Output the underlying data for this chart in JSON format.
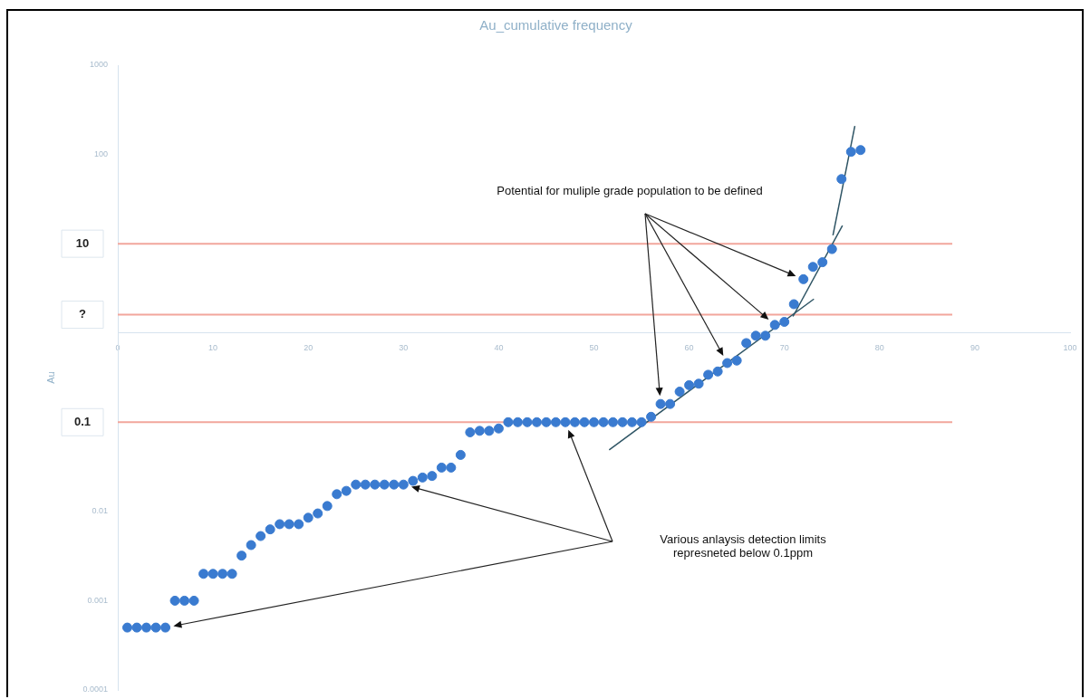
{
  "chart_data": {
    "type": "scatter",
    "title": "Au_cumulative frequency",
    "ylabel": "Au",
    "log": "y",
    "grid": false,
    "legend": false,
    "marker": "circle",
    "xlim": [
      0,
      100
    ],
    "xticks": [
      0,
      10,
      20,
      30,
      40,
      50,
      60,
      70,
      80,
      90,
      100
    ],
    "ylim": [
      0.0001,
      1000
    ],
    "yticks": [
      0.0001,
      0.001,
      0.01,
      100,
      1000
    ],
    "series": [
      {
        "color": "#3a7bd0",
        "x": [
          1,
          2,
          3,
          4,
          5,
          6,
          7,
          8,
          9,
          10,
          11,
          12,
          13,
          14,
          15,
          16,
          17,
          18,
          19,
          20,
          21,
          22,
          23,
          24,
          25,
          26,
          27,
          28,
          29,
          30,
          31,
          32,
          33,
          34,
          35,
          36,
          37,
          38,
          39,
          40,
          41,
          42,
          43,
          44,
          45,
          46,
          47,
          48,
          49,
          50,
          51,
          52,
          53,
          54,
          55,
          56,
          57,
          58,
          59,
          60,
          61,
          62,
          63,
          64,
          65,
          66,
          67,
          68,
          69,
          70,
          71,
          72,
          73,
          74,
          75,
          76,
          77,
          78
        ],
        "values": [
          0.0005,
          0.0005,
          0.0005,
          0.0005,
          0.0005,
          0.001,
          0.001,
          0.001,
          0.002,
          0.002,
          0.002,
          0.002,
          0.0032,
          0.0042,
          0.0053,
          0.0063,
          0.0072,
          0.0072,
          0.0072,
          0.0085,
          0.0095,
          0.0115,
          0.0156,
          0.017,
          0.02,
          0.02,
          0.02,
          0.02,
          0.02,
          0.02,
          0.022,
          0.024,
          0.025,
          0.031,
          0.031,
          0.043,
          0.077,
          0.08,
          0.08,
          0.085,
          0.1,
          0.1,
          0.1,
          0.1,
          0.1,
          0.1,
          0.1,
          0.1,
          0.1,
          0.1,
          0.1,
          0.1,
          0.1,
          0.1,
          0.1,
          0.115,
          0.16,
          0.16,
          0.22,
          0.26,
          0.27,
          0.34,
          0.37,
          0.46,
          0.49,
          0.77,
          0.93,
          0.93,
          1.23,
          1.33,
          2.1,
          4.0,
          5.5,
          6.2,
          8.7,
          53,
          107,
          112
        ]
      },
      {
        "type": "line",
        "color": "#2f5565",
        "line_style": "solid",
        "marker": "none",
        "x": [
          51.6,
          73.1
        ],
        "values": [
          0.049,
          2.4
        ]
      },
      {
        "type": "line",
        "color": "#2f5565",
        "line_style": "solid",
        "marker": "none",
        "x": [
          70.9,
          76.1
        ],
        "values": [
          1.53,
          16
        ]
      },
      {
        "type": "line",
        "color": "#2f5565",
        "line_style": "solid",
        "marker": "none",
        "x": [
          75.1,
          77.4
        ],
        "values": [
          12.4,
          208
        ]
      }
    ],
    "ref_lines": [
      {
        "axis": "y",
        "value": 10,
        "label": "10",
        "color": "#f2a69c"
      },
      {
        "axis": "y",
        "value": 1.6,
        "label": "?",
        "color": "#f2a69c"
      },
      {
        "axis": "y",
        "value": 0.1,
        "label": "0.1",
        "color": "#f2a69c"
      }
    ],
    "annotations": [
      "Potential for muliple grade population to be defined",
      "Various anlaysis detection limits\nrepresneted below 0.1ppm"
    ]
  }
}
